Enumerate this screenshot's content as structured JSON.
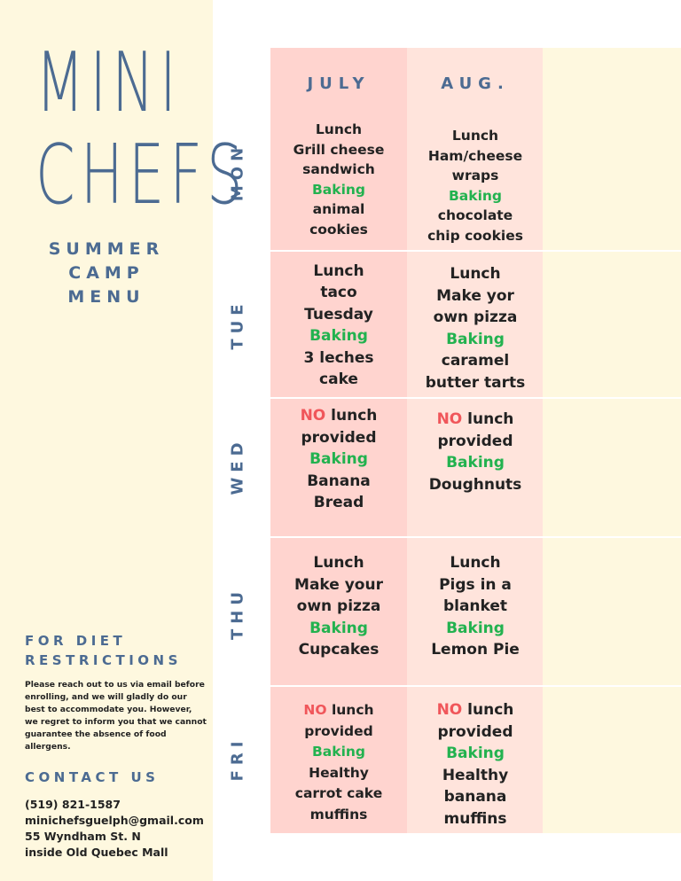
{
  "title_line1": "MINI",
  "title_line2": "CHEFS",
  "subtitle": [
    "SUMMER",
    "CAMP",
    "MENU"
  ],
  "diet_title": [
    "FOR DIET",
    "RESTRICTIONS"
  ],
  "diet_text": [
    "Please reach out to us via email before",
    "enrolling, and we will gladly do our",
    "best to accommodate you. However,",
    "we regret to inform you that we cannot",
    "guarantee the absence of food",
    "allergens."
  ],
  "contact_title": "CONTACT US",
  "contact": {
    "phone": "(519) 821-1587",
    "email": "minichefsguelph@gmail.com",
    "address": "55 Wyndham St. N",
    "location": "inside Old Quebec Mall"
  },
  "days": [
    "MON",
    "TUE",
    "WED",
    "THU",
    "FRI"
  ],
  "months": [
    "JULY",
    "AUG."
  ],
  "menu": {
    "july": {
      "mon": [
        "Lunch",
        "Grill cheese",
        "sandwich",
        "Baking",
        "animal",
        "cookies"
      ],
      "tue": [
        "Lunch",
        "taco",
        "Tuesday",
        "Baking",
        "3 leches",
        "cake"
      ],
      "wed": [
        "NO",
        " lunch",
        "provided",
        "Baking",
        "Banana",
        "Bread"
      ],
      "thu": [
        "Lunch",
        "Make your",
        "own pizza",
        "Baking",
        "Cupcakes"
      ],
      "fri": [
        "NO",
        " lunch",
        "provided",
        "Baking",
        "Healthy",
        "carrot cake",
        "muffins"
      ]
    },
    "aug": {
      "mon": [
        "Lunch",
        "Ham/cheese",
        "wraps",
        "Baking",
        "chocolate",
        "chip cookies"
      ],
      "tue": [
        "Lunch",
        "Make yor",
        "own pizza",
        "Baking",
        "caramel",
        "butter tarts"
      ],
      "wed": [
        "NO",
        " lunch",
        "provided",
        "Baking",
        "Doughnuts"
      ],
      "thu": [
        "Lunch",
        "Pigs in a",
        "blanket",
        "Baking",
        "Lemon Pie"
      ],
      "fri": [
        "NO",
        " lunch",
        "provided",
        "Baking",
        "Healthy",
        "banana",
        "muffins"
      ]
    }
  },
  "colors": {
    "blue": "#4c6b92",
    "green": "#22b24f",
    "red": "#f0565a",
    "cream": "#fef8df",
    "pink_dark": "#ffd4cf",
    "pink_light": "#ffe4dc"
  }
}
